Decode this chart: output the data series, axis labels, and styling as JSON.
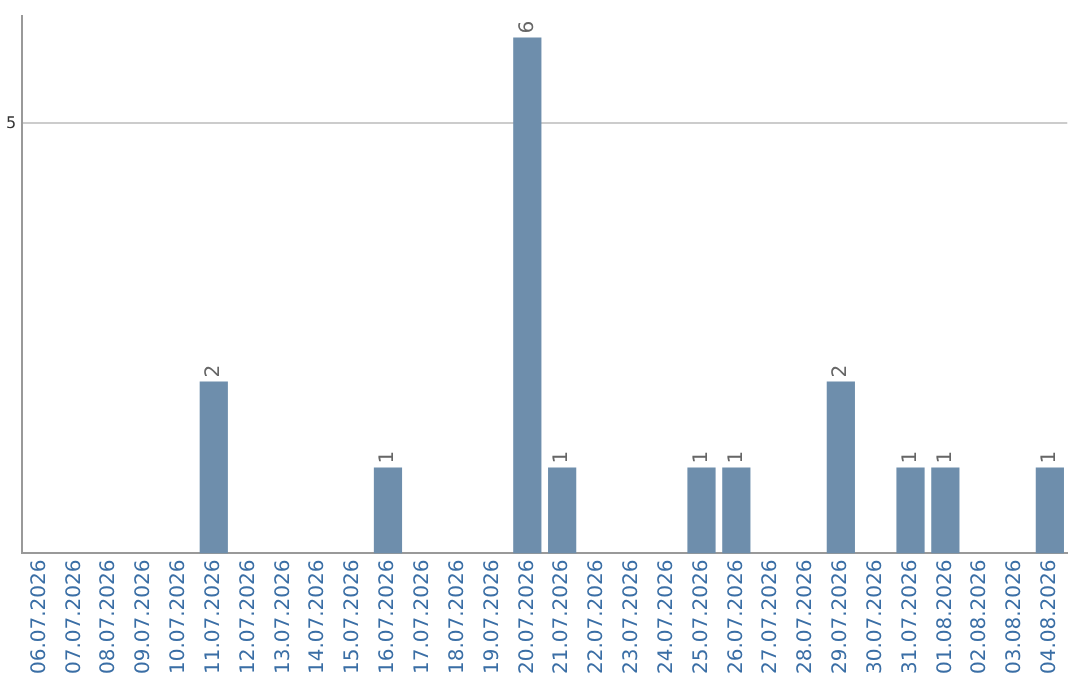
{
  "chart_data": {
    "type": "bar",
    "categories": [
      "06.07.2026",
      "07.07.2026",
      "08.07.2026",
      "09.07.2026",
      "10.07.2026",
      "11.07.2026",
      "12.07.2026",
      "13.07.2026",
      "14.07.2026",
      "15.07.2026",
      "16.07.2026",
      "17.07.2026",
      "18.07.2026",
      "19.07.2026",
      "20.07.2026",
      "21.07.2026",
      "22.07.2026",
      "23.07.2026",
      "24.07.2026",
      "25.07.2026",
      "26.07.2026",
      "27.07.2026",
      "28.07.2026",
      "29.07.2026",
      "30.07.2026",
      "31.07.2026",
      "01.08.2026",
      "02.08.2026",
      "03.08.2026",
      "04.08.2026"
    ],
    "values": [
      0,
      0,
      0,
      0,
      0,
      2,
      0,
      0,
      0,
      0,
      1,
      0,
      0,
      0,
      6,
      1,
      0,
      0,
      0,
      1,
      1,
      0,
      0,
      2,
      0,
      1,
      1,
      0,
      0,
      1
    ],
    "value_labels": [
      null,
      null,
      null,
      null,
      null,
      "2",
      null,
      null,
      null,
      null,
      "1",
      null,
      null,
      null,
      "6",
      "1",
      null,
      null,
      null,
      "1",
      "1",
      null,
      null,
      "2",
      null,
      "1",
      "1",
      null,
      null,
      "1"
    ],
    "color": "#6e8eac",
    "ylim": [
      0,
      6.25
    ],
    "yticks": [
      5
    ],
    "grid": "y",
    "legend": false
  }
}
